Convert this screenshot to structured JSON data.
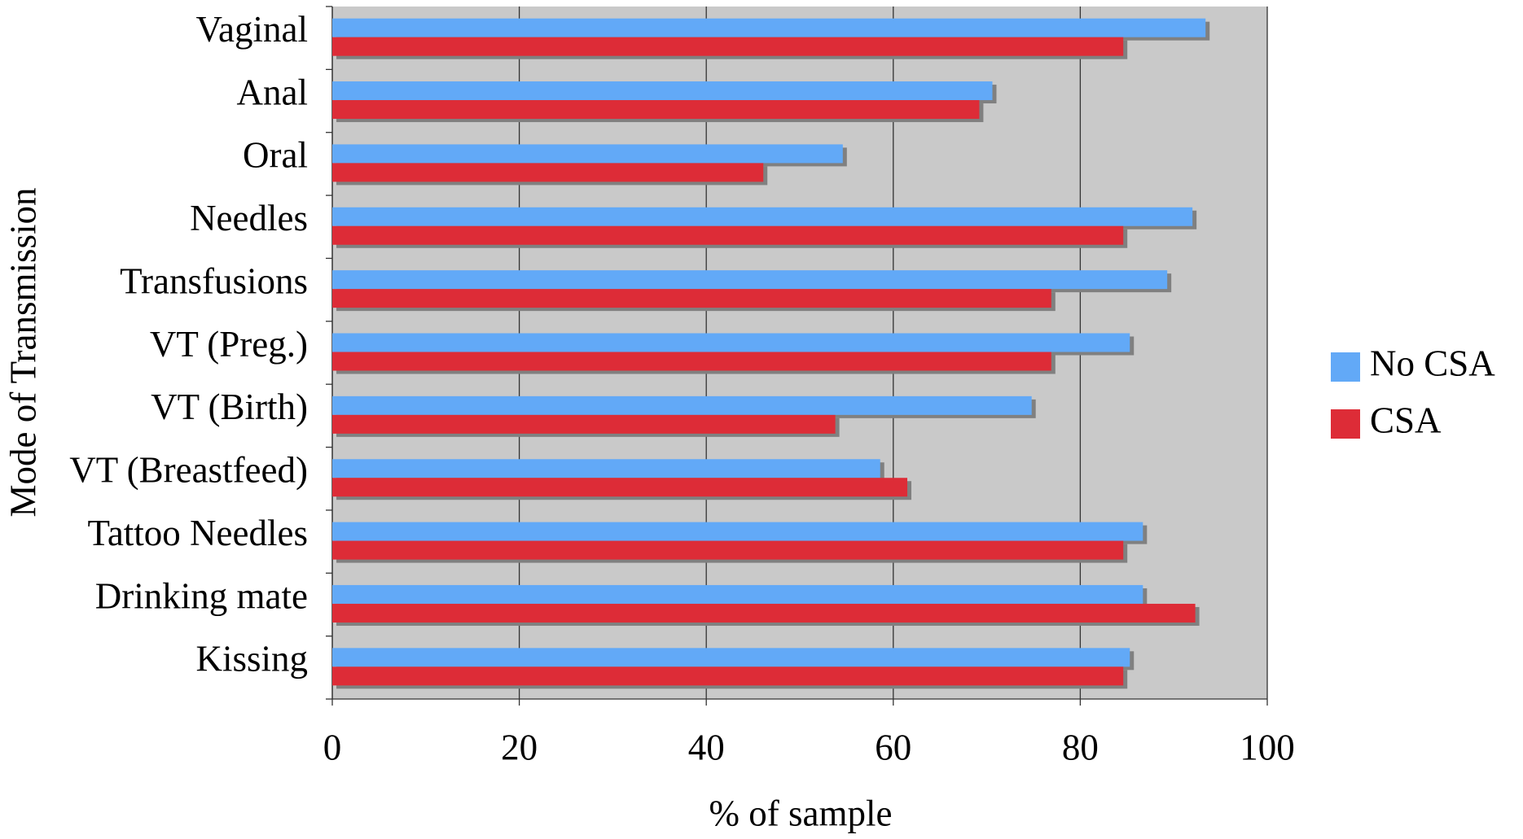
{
  "chart_data": {
    "type": "hbar",
    "x_label": "% of sample",
    "y_label": "Mode of Transmission",
    "categories": [
      "Vaginal",
      "Anal",
      "Oral",
      "Needles",
      "Transfusions",
      "VT (Preg.)",
      "VT (Birth)",
      "VT (Breastfeed)",
      "Tattoo Needles",
      "Drinking mate",
      "Kissing"
    ],
    "series": [
      {
        "name": "No CSA",
        "color": "#62a9f7",
        "values": [
          93.4,
          70.6,
          54.6,
          92.0,
          89.3,
          85.3,
          74.8,
          58.6,
          86.7,
          86.7,
          85.3
        ]
      },
      {
        "name": "CSA",
        "color": "#dd2c37",
        "values": [
          84.6,
          69.2,
          46.1,
          84.6,
          76.9,
          76.9,
          53.8,
          61.5,
          84.6,
          92.3,
          84.6
        ]
      }
    ],
    "xlim": [
      0,
      100
    ],
    "xticks": [
      0,
      20,
      40,
      60,
      80,
      100
    ],
    "grid": true,
    "legend": "right"
  }
}
